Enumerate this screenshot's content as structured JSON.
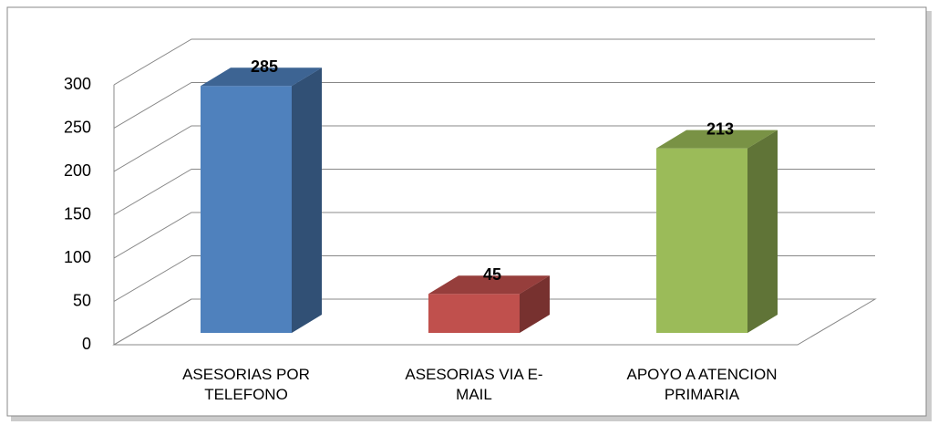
{
  "chart_data": {
    "type": "bar3d",
    "categories": [
      "ASESORIAS POR TELEFONO",
      "ASESORIAS VIA E-MAIL",
      "APOYO A ATENCION PRIMARIA"
    ],
    "values": [
      285,
      45,
      213
    ],
    "colors": [
      "#4f81bd",
      "#c0504d",
      "#9bbb59"
    ],
    "ylim": [
      0,
      300
    ],
    "yticks": [
      0,
      50,
      100,
      150,
      200,
      250,
      300
    ],
    "grid": true
  }
}
